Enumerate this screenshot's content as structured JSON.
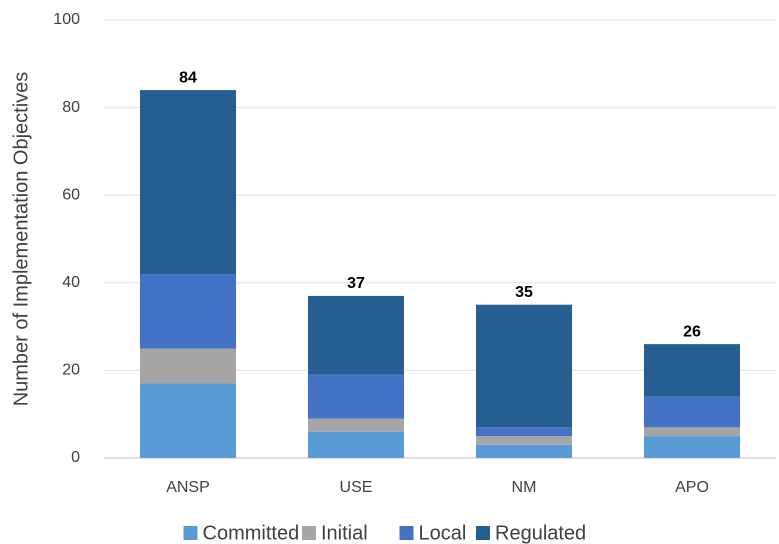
{
  "chart_data": {
    "type": "stacked_bar",
    "y_label": "Number of Implementation Objectives",
    "categories": [
      "ANSP",
      "USE",
      "NM",
      "APO"
    ],
    "series": [
      {
        "name": "Committed",
        "color": "#5b9bd5",
        "values": [
          17,
          6,
          3,
          5
        ]
      },
      {
        "name": "Initial",
        "color": "#a5a5a5",
        "values": [
          8,
          3,
          2,
          2
        ]
      },
      {
        "name": "Local",
        "color": "#4472c4",
        "values": [
          17,
          10,
          2,
          7
        ]
      },
      {
        "name": "Regulated",
        "color": "#255e91",
        "values": [
          42,
          18,
          28,
          12
        ]
      }
    ],
    "totals": [
      84,
      37,
      35,
      26
    ],
    "ylim": [
      0,
      100
    ],
    "yticks": [
      0,
      20,
      40,
      60,
      80,
      100
    ],
    "grid": true,
    "legend": "bottom"
  }
}
